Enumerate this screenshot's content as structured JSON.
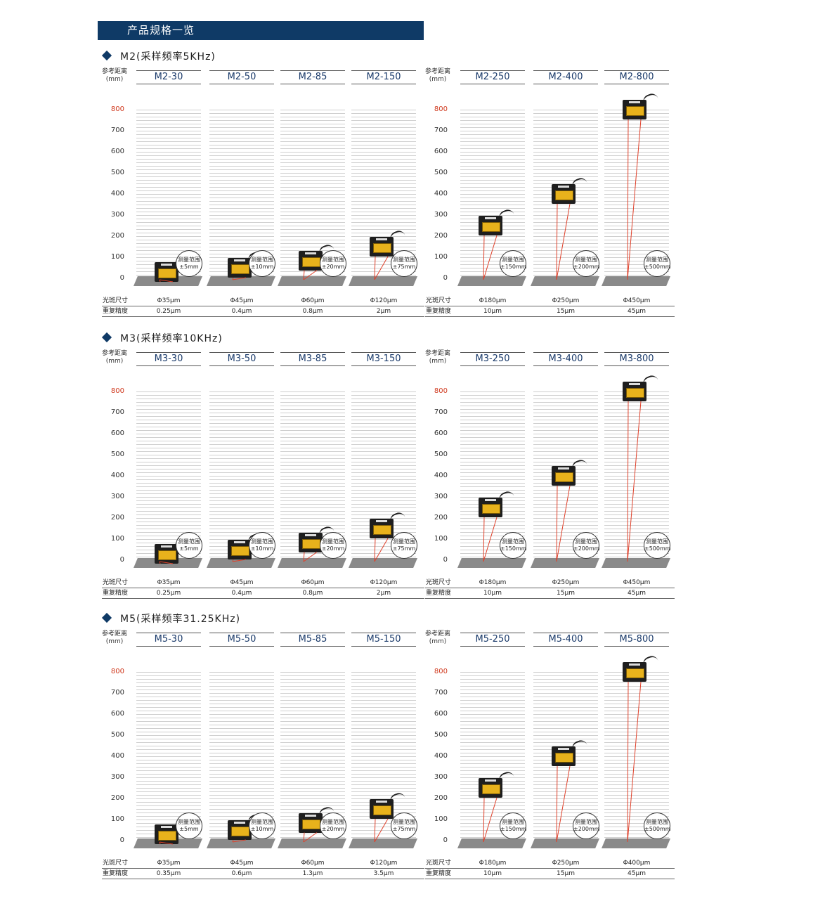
{
  "banner": "产品规格一览",
  "axis_head": {
    "line1": "参考距离",
    "line2": "(mm)"
  },
  "ticks": [
    "800",
    "700",
    "600",
    "500",
    "400",
    "300",
    "200",
    "100",
    "0"
  ],
  "spec_labels": {
    "spot": "光斑尺寸",
    "repeat": "重复精度"
  },
  "range_label": "测量范围",
  "sections": [
    {
      "title": "M2(采样频率5KHz)",
      "models": [
        {
          "name": "M2-30",
          "range": "±5mm",
          "spot": "Φ35μm",
          "repeat": "0.25μm",
          "ref": 30
        },
        {
          "name": "M2-50",
          "range": "±10mm",
          "spot": "Φ45μm",
          "repeat": "0.4μm",
          "ref": 50
        },
        {
          "name": "M2-85",
          "range": "±20mm",
          "spot": "Φ60μm",
          "repeat": "0.8μm",
          "ref": 85
        },
        {
          "name": "M2-150",
          "range": "±75mm",
          "spot": "Φ120μm",
          "repeat": "2μm",
          "ref": 150
        },
        {
          "name": "M2-250",
          "range": "±150mm",
          "spot": "Φ180μm",
          "repeat": "10μm",
          "ref": 250
        },
        {
          "name": "M2-400",
          "range": "±200mm",
          "spot": "Φ250μm",
          "repeat": "15μm",
          "ref": 400
        },
        {
          "name": "M2-800",
          "range": "±500mm",
          "spot": "Φ450μm",
          "repeat": "45μm",
          "ref": 800
        }
      ]
    },
    {
      "title": "M3(采样频率10KHz)",
      "models": [
        {
          "name": "M3-30",
          "range": "±5mm",
          "spot": "Φ35μm",
          "repeat": "0.25μm",
          "ref": 30
        },
        {
          "name": "M3-50",
          "range": "±10mm",
          "spot": "Φ45μm",
          "repeat": "0.4μm",
          "ref": 50
        },
        {
          "name": "M3-85",
          "range": "±20mm",
          "spot": "Φ60μm",
          "repeat": "0.8μm",
          "ref": 85
        },
        {
          "name": "M3-150",
          "range": "±75mm",
          "spot": "Φ120μm",
          "repeat": "2μm",
          "ref": 150
        },
        {
          "name": "M3-250",
          "range": "±150mm",
          "spot": "Φ180μm",
          "repeat": "10μm",
          "ref": 250
        },
        {
          "name": "M3-400",
          "range": "±200mm",
          "spot": "Φ250μm",
          "repeat": "15μm",
          "ref": 400
        },
        {
          "name": "M3-800",
          "range": "±500mm",
          "spot": "Φ450μm",
          "repeat": "45μm",
          "ref": 800
        }
      ]
    },
    {
      "title": "M5(采样频率31.25KHz)",
      "models": [
        {
          "name": "M5-30",
          "range": "±5mm",
          "spot": "Φ35μm",
          "repeat": "0.35μm",
          "ref": 30
        },
        {
          "name": "M5-50",
          "range": "±10mm",
          "spot": "Φ45μm",
          "repeat": "0.6μm",
          "ref": 50
        },
        {
          "name": "M5-85",
          "range": "±20mm",
          "spot": "Φ60μm",
          "repeat": "1.3μm",
          "ref": 85
        },
        {
          "name": "M5-150",
          "range": "±75mm",
          "spot": "Φ120μm",
          "repeat": "3.5μm",
          "ref": 150
        },
        {
          "name": "M5-250",
          "range": "±150mm",
          "spot": "Φ180μm",
          "repeat": "10μm",
          "ref": 250
        },
        {
          "name": "M5-400",
          "range": "±200mm",
          "spot": "Φ250μm",
          "repeat": "15μm",
          "ref": 400
        },
        {
          "name": "M5-800",
          "range": "±500mm",
          "spot": "Φ400μm",
          "repeat": "45μm",
          "ref": 800
        }
      ]
    }
  ]
}
